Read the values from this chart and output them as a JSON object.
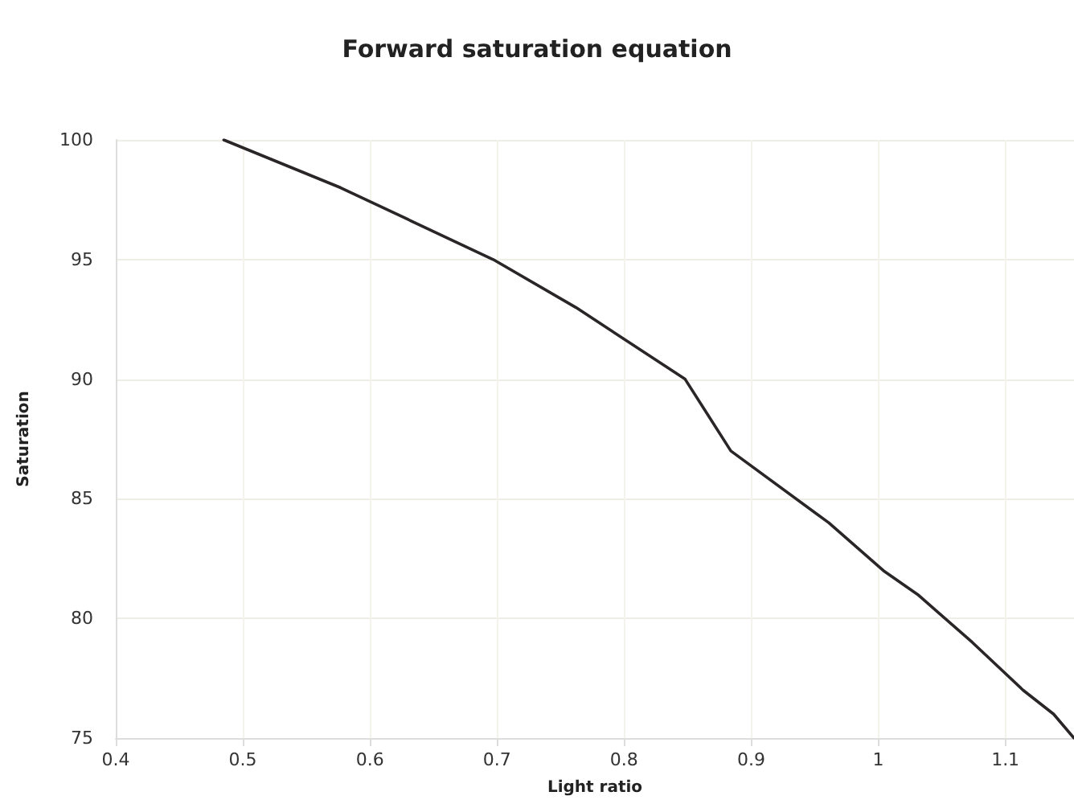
{
  "chart_data": {
    "type": "line",
    "title": "Forward saturation equation",
    "xlabel": "Light ratio",
    "ylabel": "Saturation",
    "x": [
      0.485,
      0.577,
      0.697,
      0.762,
      0.848,
      0.884,
      0.961,
      1.004,
      1.031,
      1.074,
      1.114,
      1.138,
      1.154
    ],
    "series": [
      {
        "color": "#2a2526",
        "values": [
          100,
          98,
          95,
          93,
          90,
          87,
          84,
          82,
          81,
          79,
          77,
          76,
          75
        ]
      }
    ],
    "xlim": [
      0.4,
      1.154
    ],
    "xticks": [
      0.4,
      0.5,
      0.6,
      0.7,
      0.8,
      0.9,
      1,
      1.1
    ],
    "ylim": [
      75,
      100
    ],
    "yticks": [
      75,
      80,
      85,
      90,
      95,
      100
    ],
    "grid": true,
    "marker": "none",
    "line_style": "solid"
  }
}
